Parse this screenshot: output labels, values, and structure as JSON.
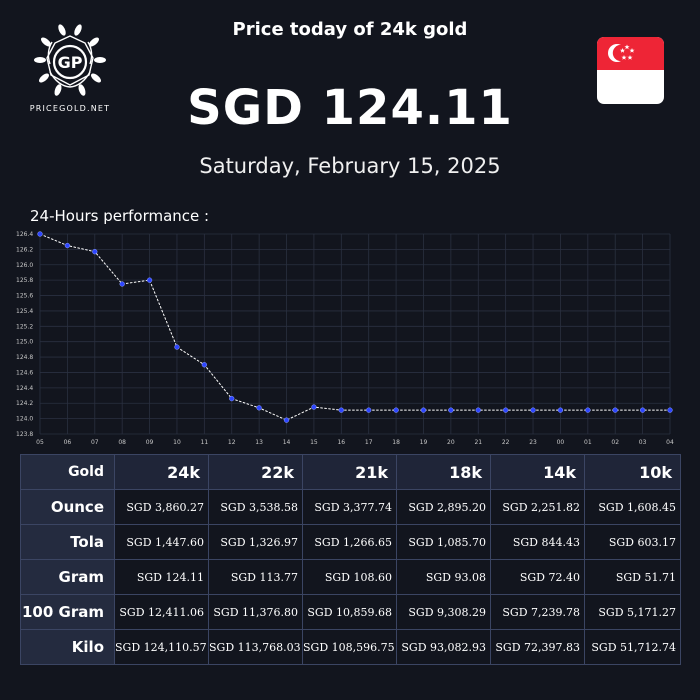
{
  "brand": {
    "name": "PRICEGOLD.NET",
    "monogram": "GP"
  },
  "headline": "Price today of 24k gold",
  "price": "SGD 124.11",
  "date": "Saturday, February 15, 2025",
  "flag": {
    "country": "Singapore",
    "icon": "singapore-flag-icon",
    "colors": {
      "red": "#ee2536",
      "white": "#ffffff"
    }
  },
  "performance_label": "24-Hours performance :",
  "chart_data": {
    "type": "line",
    "title": "",
    "xlabel": "",
    "ylabel": "",
    "ylim": [
      123.8,
      126.4
    ],
    "y_ticks": [
      123.8,
      124.0,
      124.2,
      124.4,
      124.6,
      124.8,
      125.0,
      125.2,
      125.4,
      125.6,
      125.8,
      126.0,
      126.2,
      126.4
    ],
    "y_tick_labels": [
      "123.8",
      "124.0",
      "124.2",
      "124.4",
      "124.6",
      "124.8",
      "125.0",
      "125.2",
      "125.4",
      "125.6",
      "125.8",
      "126.0",
      "126.2",
      "126.4"
    ],
    "x": [
      "05",
      "06",
      "07",
      "08",
      "09",
      "10",
      "11",
      "12",
      "13",
      "14",
      "15",
      "16",
      "17",
      "18",
      "19",
      "20",
      "21",
      "22",
      "23",
      "00",
      "01",
      "02",
      "03",
      "04"
    ],
    "values": [
      126.4,
      126.25,
      126.17,
      125.75,
      125.8,
      124.93,
      124.7,
      124.26,
      124.14,
      123.98,
      124.15,
      124.11,
      124.11,
      124.11,
      124.11,
      124.11,
      124.11,
      124.11,
      124.11,
      124.11,
      124.11,
      124.11,
      124.11,
      124.11
    ],
    "grid": true,
    "colors": {
      "line": "#ffffff",
      "marker": "#2e46ff",
      "grid": "#2a3040"
    }
  },
  "table": {
    "corner": "Gold",
    "karats": [
      "24k",
      "22k",
      "21k",
      "18k",
      "14k",
      "10k"
    ],
    "rows": [
      {
        "unit": "Ounce",
        "values": [
          "SGD 3,860.27",
          "SGD 3,538.58",
          "SGD 3,377.74",
          "SGD 2,895.20",
          "SGD 2,251.82",
          "SGD 1,608.45"
        ]
      },
      {
        "unit": "Tola",
        "values": [
          "SGD 1,447.60",
          "SGD 1,326.97",
          "SGD 1,266.65",
          "SGD 1,085.70",
          "SGD 844.43",
          "SGD 603.17"
        ]
      },
      {
        "unit": "Gram",
        "values": [
          "SGD 124.11",
          "SGD 113.77",
          "SGD 108.60",
          "SGD 93.08",
          "SGD 72.40",
          "SGD 51.71"
        ]
      },
      {
        "unit": "100 Gram",
        "values": [
          "SGD 12,411.06",
          "SGD 11,376.80",
          "SGD 10,859.68",
          "SGD 9,308.29",
          "SGD 7,239.78",
          "SGD 5,171.27"
        ]
      },
      {
        "unit": "Kilo",
        "values": [
          "SGD 124,110.57",
          "SGD 113,768.03",
          "SGD 108,596.75",
          "SGD 93,082.93",
          "SGD 72,397.83",
          "SGD 51,712.74"
        ]
      }
    ]
  }
}
